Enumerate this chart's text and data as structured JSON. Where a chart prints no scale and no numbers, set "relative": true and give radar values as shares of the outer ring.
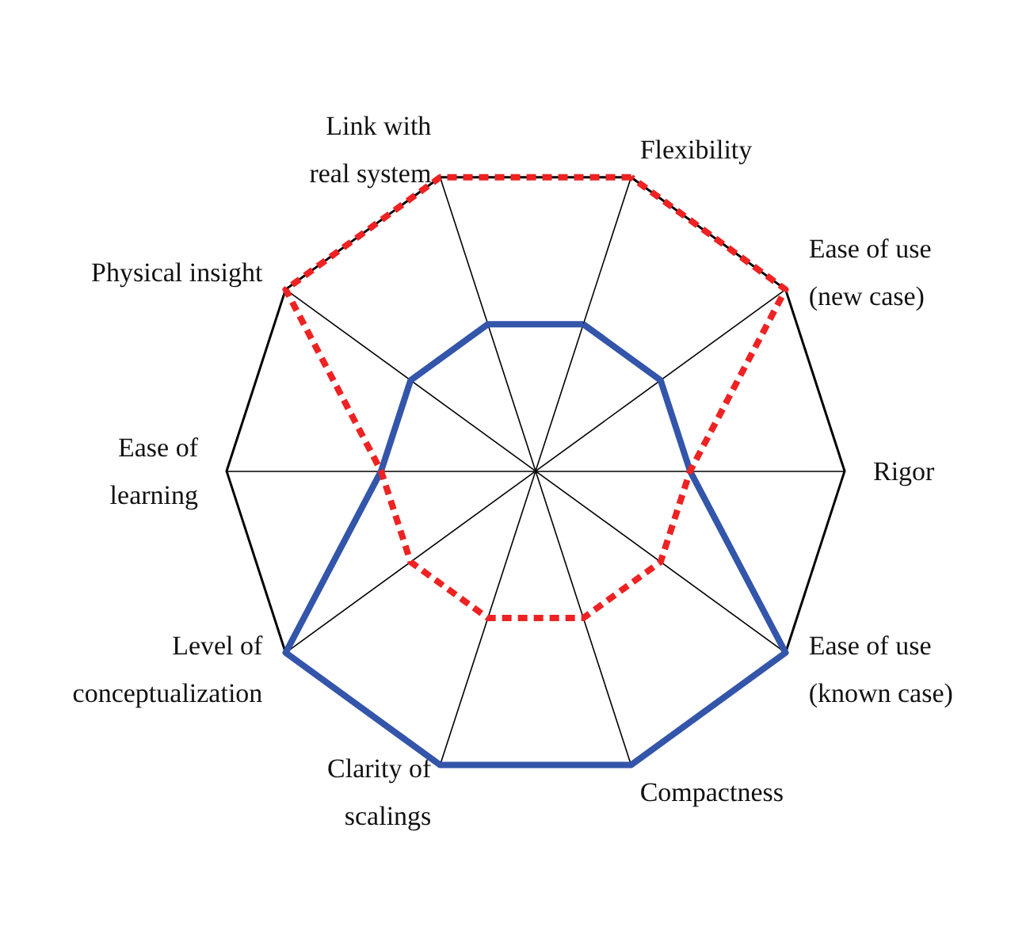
{
  "chart_data": {
    "type": "radar",
    "relative": true,
    "marker": "none",
    "categories": [
      "Flexibility",
      "Ease of use\n(new case)",
      "Rigor",
      "Ease of use\n(known case)",
      "Compactness",
      "Clarity of\nscalings",
      "Level of\nconceptualization",
      "Ease of\nlearning",
      "Physical insight",
      "Link with\nreal system"
    ],
    "series": [
      {
        "color": "#3355aa",
        "line_style": "solid",
        "values": [
          0.5,
          0.5,
          0.5,
          1,
          1,
          1,
          1,
          0.5,
          0.5,
          0.5
        ]
      },
      {
        "color": "#ee2222",
        "line_style": "dashed",
        "values": [
          1,
          1,
          0.5,
          0.5,
          0.5,
          0.5,
          0.5,
          0.5,
          1,
          1
        ]
      }
    ]
  }
}
